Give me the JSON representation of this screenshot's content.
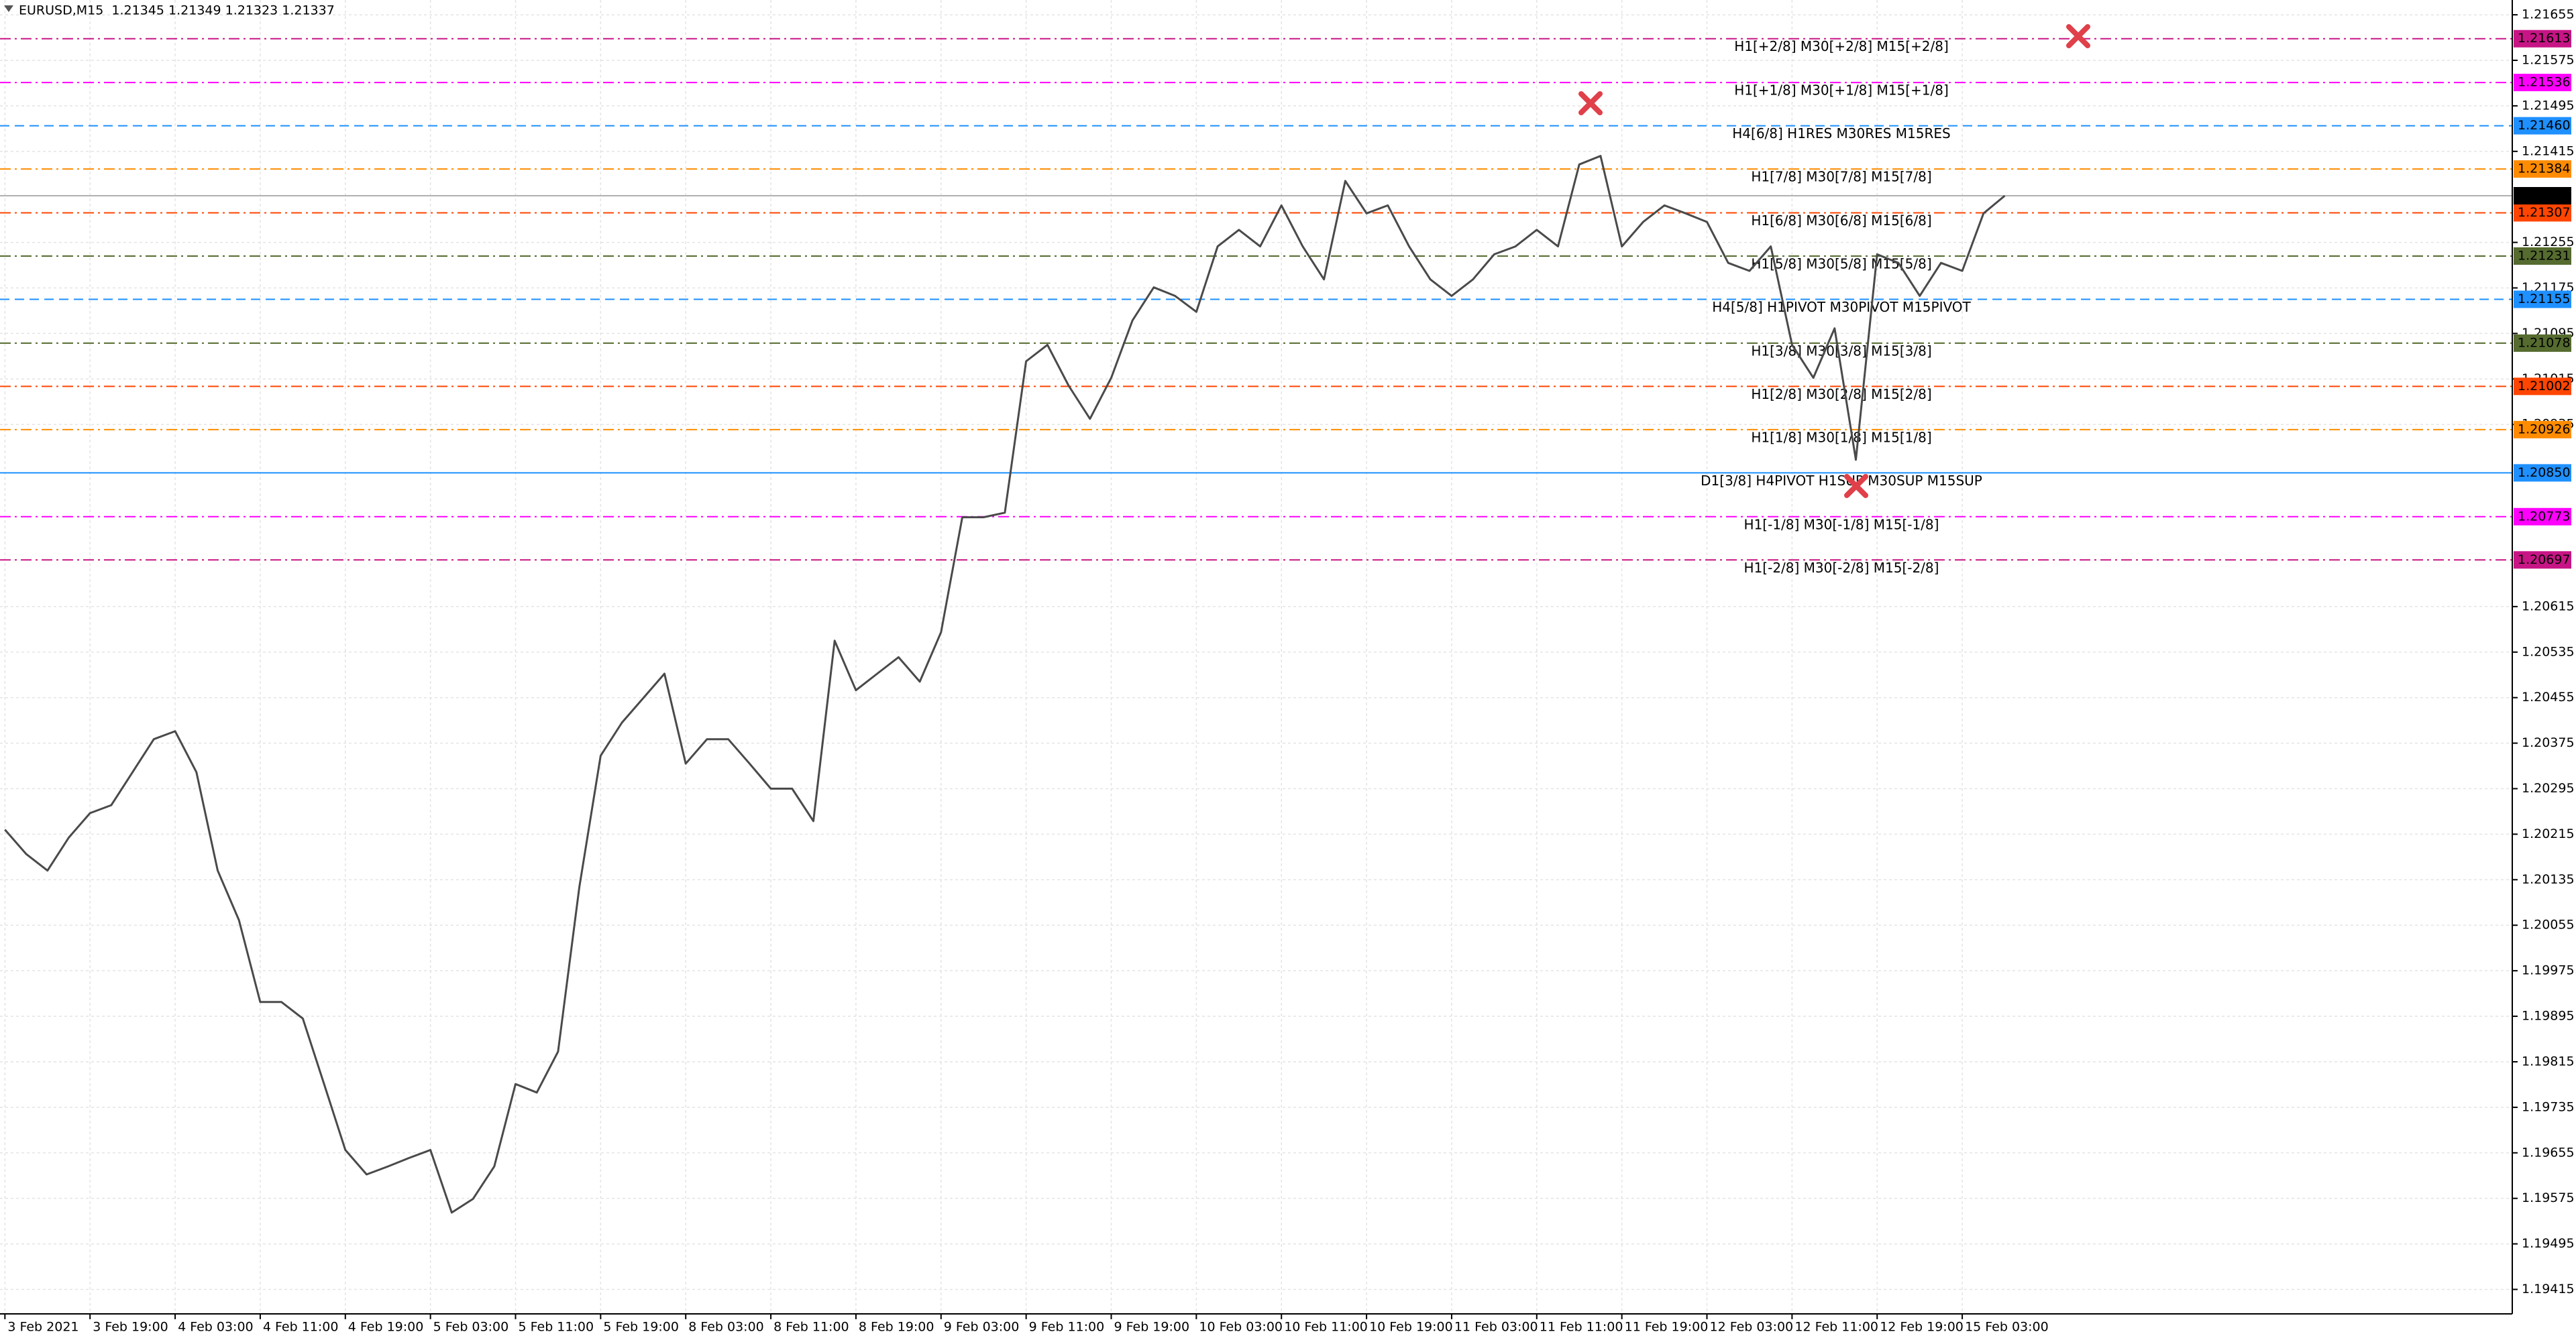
{
  "chart_data": {
    "type": "line",
    "header": "EURUSD,M15  1.21345 1.21349 1.21323 1.21337",
    "color": "#4a4a4a",
    "categories": [
      "3 Feb 2021",
      null,
      null,
      null,
      "3 Feb 19:00",
      null,
      null,
      null,
      "4 Feb 03:00",
      null,
      null,
      null,
      "4 Feb 11:00",
      null,
      null,
      null,
      "4 Feb 19:00",
      null,
      null,
      null,
      "5 Feb 03:00",
      null,
      null,
      null,
      "5 Feb 11:00",
      null,
      null,
      null,
      "5 Feb 19:00",
      null,
      null,
      null,
      "8 Feb 03:00",
      null,
      null,
      null,
      "8 Feb 11:00",
      null,
      null,
      null,
      "8 Feb 19:00",
      null,
      null,
      null,
      "9 Feb 03:00",
      null,
      null,
      null,
      "9 Feb 11:00",
      null,
      null,
      null,
      "9 Feb 19:00",
      null,
      null,
      null,
      "10 Feb 03:00",
      null,
      null,
      null,
      "10 Feb 11:00",
      null,
      null,
      null,
      "10 Feb 19:00",
      null,
      null,
      null,
      "11 Feb 03:00",
      null,
      null,
      null,
      "11 Feb 11:00",
      null,
      null,
      null,
      "11 Feb 19:00",
      null,
      null,
      null,
      "12 Feb 03:00",
      null,
      null,
      null,
      "12 Feb 11:00",
      null,
      null,
      null,
      "12 Feb 19:00",
      null,
      null,
      null,
      "15 Feb 03:00",
      null,
      null
    ],
    "values": [
      1.20223,
      1.2018,
      1.20151,
      1.20209,
      1.20252,
      1.20266,
      1.20324,
      1.20382,
      1.20396,
      1.20324,
      1.20151,
      1.20064,
      1.1992,
      1.1992,
      1.19891,
      1.19776,
      1.1966,
      1.19617,
      1.19631,
      1.19646,
      1.1966,
      1.1955,
      1.19574,
      1.19631,
      1.19776,
      1.19761,
      1.19833,
      1.20122,
      1.20353,
      1.20411,
      1.20454,
      1.20497,
      1.20339,
      1.20382,
      1.20382,
      1.20339,
      1.20295,
      1.20295,
      1.20238,
      1.20555,
      1.20468,
      1.20497,
      1.20526,
      1.20483,
      1.2057,
      1.20772,
      1.20772,
      1.2078,
      1.21046,
      1.21075,
      1.21003,
      1.20945,
      1.21017,
      1.21118,
      1.21176,
      1.21161,
      1.21133,
      1.21248,
      1.21277,
      1.21248,
      1.2132,
      1.21248,
      1.2119,
      1.21363,
      1.21306,
      1.2132,
      1.21248,
      1.2119,
      1.21161,
      1.2119,
      1.21234,
      1.21248,
      1.21277,
      1.21248,
      1.21392,
      1.21407,
      1.21248,
      1.21291,
      1.2132,
      1.21306,
      1.21291,
      1.21219,
      1.21205,
      1.21248,
      1.21075,
      1.21017,
      1.21104,
      1.20873,
      1.21234,
      1.21219,
      1.21161,
      1.21219,
      1.21205,
      1.21306,
      1.21337
    ],
    "ylim": [
      1.19372,
      1.21681
    ],
    "yticks": [
      1.21655,
      1.21575,
      1.21495,
      1.21415,
      1.21255,
      1.21175,
      1.21095,
      1.21015,
      1.20935,
      1.20615,
      1.20535,
      1.20455,
      1.20375,
      1.20295,
      1.20215,
      1.20135,
      1.20055,
      1.19975,
      1.19895,
      1.19815,
      1.19735,
      1.19655,
      1.19575,
      1.19495,
      1.19415
    ],
    "grid": true,
    "current": {
      "price": 1.21337,
      "color": "#000000"
    },
    "levels": [
      {
        "text": "H1[+2/8] M30[+2/8] M15[+2/8]",
        "price": 1.21613,
        "color": "#c71585",
        "dash": "dashdot"
      },
      {
        "text": "H1[+1/8] M30[+1/8] M15[+1/8]",
        "price": 1.21536,
        "color": "#ff00ff",
        "dash": "dashdot"
      },
      {
        "text": "H4[6/8] H1RES M30RES M15RES",
        "price": {
          "value": 1.2146,
          "label": "1.21460"
        },
        "color": "#1e90ff",
        "dash": "dash"
      },
      {
        "text": "H1[7/8] M30[7/8] M15[7/8]",
        "price": 1.21384,
        "color": "#ff8c00",
        "dash": "dashdot"
      },
      {
        "text": "H1[6/8] M30[6/8] M15[6/8]",
        "price": 1.21307,
        "color": "#ff4500",
        "dash": "dashdot"
      },
      {
        "text": "H1[5/8] M30[5/8] M15[5/8]",
        "price": 1.21231,
        "color": "#556b2f",
        "dash": "dashdot"
      },
      {
        "text": "H4[5/8] H1PIVOT M30PIVOT M15PIVOT",
        "price": 1.21155,
        "color": "#1e90ff",
        "dash": "dash"
      },
      {
        "text": "H1[3/8] M30[3/8] M15[3/8]",
        "price": 1.21078,
        "color": "#556b2f",
        "dash": "dashdot"
      },
      {
        "text": "H1[2/8] M30[2/8] M15[2/8]",
        "price": 1.21002,
        "color": "#ff4500",
        "dash": "dashdot"
      },
      {
        "text": "H1[1/8] M30[1/8] M15[1/8]",
        "price": 1.20926,
        "color": "#ff8c00",
        "dash": "dashdot"
      },
      {
        "text": "D1[3/8] H4PIVOT H1SUP M30SUP M15SUP",
        "price": {
          "value": 1.2085,
          "label": "1.20850"
        },
        "color": "#1e90ff",
        "dash": "solid"
      },
      {
        "text": "H1[-1/8] M30[-1/8] M15[-1/8]",
        "price": 1.20773,
        "color": "#ff00ff",
        "dash": "dashdot"
      },
      {
        "text": "H1[-2/8] M30[-2/8] M15[-2/8]",
        "price": 1.20697,
        "color": "#c71585",
        "dash": "dashdot"
      }
    ]
  }
}
